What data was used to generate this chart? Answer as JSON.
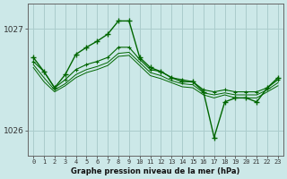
{
  "title": "Graphe pression niveau de la mer (hPa)",
  "background_color": "#cce8e8",
  "grid_color": "#aacccc",
  "line_color": "#006600",
  "x_labels": [
    "0",
    "1",
    "2",
    "3",
    "4",
    "5",
    "6",
    "7",
    "8",
    "9",
    "10",
    "11",
    "12",
    "13",
    "14",
    "15",
    "16",
    "17",
    "18",
    "19",
    "20",
    "21",
    "22",
    "23"
  ],
  "series": [
    [
      1026.72,
      1026.58,
      1026.42,
      1026.55,
      1026.75,
      1026.82,
      1026.88,
      1026.95,
      1027.08,
      1027.08,
      1026.72,
      1026.62,
      1026.58,
      1026.52,
      1026.48,
      1026.48,
      1026.38,
      1025.93,
      1026.28,
      1026.32,
      1026.32,
      1026.28,
      1026.42,
      1026.52
    ],
    [
      1026.68,
      1026.58,
      1026.42,
      1026.5,
      1026.6,
      1026.65,
      1026.68,
      1026.72,
      1026.82,
      1026.82,
      1026.7,
      1026.6,
      1026.58,
      1026.52,
      1026.5,
      1026.48,
      1026.4,
      1026.38,
      1026.4,
      1026.38,
      1026.38,
      1026.38,
      1026.42,
      1026.5
    ],
    [
      1026.65,
      1026.52,
      1026.4,
      1026.46,
      1026.55,
      1026.6,
      1026.63,
      1026.67,
      1026.76,
      1026.77,
      1026.67,
      1026.57,
      1026.54,
      1026.49,
      1026.46,
      1026.45,
      1026.37,
      1026.35,
      1026.37,
      1026.35,
      1026.35,
      1026.35,
      1026.4,
      1026.47
    ],
    [
      1026.62,
      1026.48,
      1026.38,
      1026.44,
      1026.52,
      1026.57,
      1026.6,
      1026.64,
      1026.73,
      1026.74,
      1026.64,
      1026.54,
      1026.51,
      1026.47,
      1026.43,
      1026.42,
      1026.35,
      1026.32,
      1026.35,
      1026.32,
      1026.32,
      1026.32,
      1026.38,
      1026.44
    ]
  ],
  "ylim": [
    1025.75,
    1027.25
  ],
  "yticks": [
    1026,
    1027
  ],
  "figsize": [
    3.2,
    2.0
  ],
  "dpi": 100
}
